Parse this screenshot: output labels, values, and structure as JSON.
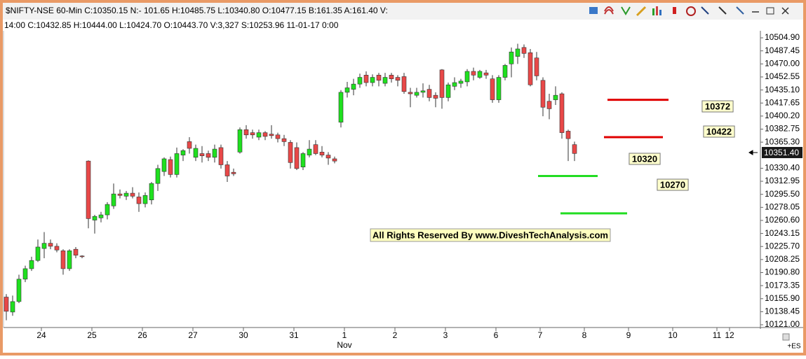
{
  "chart_data": {
    "type": "candlestick",
    "title": "$NIFTY-NSE 60-Min  C:10350.15  N:- 101.65  H:10485.75  L:10340.80  O:10477.15  B:161.35  A:161.40  V:",
    "subtitle": "14:00  C:10432.85  H:10444.00  L:10424.70  O:10443.70  V:3,327  S:10253.96  11-01-17  0:00",
    "categories": [
      null,
      null,
      null,
      null,
      null,
      "24",
      null,
      null,
      null,
      null,
      null,
      null,
      null,
      "25",
      null,
      null,
      null,
      null,
      null,
      null,
      null,
      "26",
      null,
      null,
      null,
      null,
      null,
      null,
      null,
      "27",
      null,
      null,
      null,
      null,
      null,
      null,
      null,
      "30",
      null,
      null,
      null,
      null,
      null,
      null,
      null,
      "31",
      null,
      null,
      null,
      null,
      null,
      null,
      null,
      "1",
      null,
      null,
      null,
      null,
      null,
      null,
      null,
      "2",
      null,
      null,
      null,
      null,
      null,
      null,
      null,
      "3",
      null,
      null,
      null,
      null,
      null,
      null,
      null,
      "6",
      null,
      null,
      null,
      null,
      null,
      null,
      "7",
      null,
      null,
      null,
      null,
      null,
      null,
      "8",
      null,
      null,
      null,
      null,
      null,
      null,
      "9",
      null,
      null,
      null,
      null,
      null,
      null,
      "10",
      null,
      null,
      null,
      null,
      null,
      null,
      "11",
      null,
      "12"
    ],
    "x_sublabels": [
      null,
      null,
      null,
      null,
      null,
      null,
      null,
      null,
      null,
      null,
      null,
      null,
      null,
      null,
      null,
      null,
      null,
      null,
      null,
      null,
      null,
      null,
      null,
      null,
      null,
      null,
      null,
      null,
      null,
      null,
      null,
      null,
      null,
      null,
      null,
      null,
      null,
      null,
      null,
      null,
      null,
      null,
      null,
      null,
      null,
      null,
      null,
      null,
      null,
      null,
      null,
      null,
      null,
      "Nov",
      null,
      null,
      null,
      null,
      null,
      null,
      null,
      null,
      null,
      null,
      null,
      null,
      null,
      null,
      null,
      null,
      null,
      null,
      null,
      null,
      null,
      null,
      null,
      null,
      null,
      null,
      null,
      null,
      null,
      null,
      null,
      null,
      null,
      null,
      null,
      null,
      null,
      null,
      null,
      null,
      null,
      null,
      null,
      null,
      null,
      null,
      null,
      null,
      null,
      null,
      null,
      null,
      null,
      null,
      null,
      null,
      null,
      null,
      null,
      null,
      null
    ],
    "open": [
      10158,
      10138,
      10152,
      10182,
      10196,
      10207,
      10223,
      10230,
      10226,
      10220,
      10196,
      10222,
      10213,
      10340,
      10261,
      10264,
      10268,
      10280,
      10296,
      10293,
      10297,
      10292,
      10283,
      10288,
      10310,
      10326,
      10342,
      10322,
      10348,
      10366,
      10345,
      10350,
      10350,
      10345,
      10358,
      10335,
      10325,
      10352,
      10382,
      10378,
      10372,
      10378,
      10376,
      10375,
      10370,
      10365,
      10358,
      10332,
      10348,
      10362,
      10352,
      10348,
      10343,
      10392,
      10432,
      10436,
      10443,
      10455,
      10445,
      10455,
      10444,
      10455,
      10452,
      10453,
      10432,
      10428,
      10432,
      10436,
      10428,
      10462,
      10425,
      10440,
      10444,
      10446,
      10460,
      10452,
      10458,
      10450,
      10422,
      10452,
      10470,
      10480,
      10492,
      10485,
      10478,
      10448,
      10420,
      10422,
      10430,
      10380,
      10362,
      null,
      null,
      null,
      null,
      null,
      null,
      null,
      null,
      null,
      null,
      null,
      null,
      null,
      null,
      null,
      null,
      null,
      null,
      null,
      null,
      null,
      null,
      null,
      null
    ],
    "high": [
      10162,
      10160,
      10188,
      10200,
      10212,
      10235,
      10245,
      10235,
      10230,
      10222,
      10222,
      10225,
      10214,
      10341,
      10268,
      10272,
      10285,
      10310,
      10302,
      10300,
      10305,
      10298,
      10298,
      10312,
      10335,
      10345,
      10346,
      10358,
      10356,
      10372,
      10362,
      10360,
      10354,
      10362,
      10362,
      10340,
      10330,
      10385,
      10388,
      10382,
      10382,
      10380,
      10388,
      10378,
      10375,
      10368,
      10365,
      10352,
      10368,
      10368,
      10360,
      10352,
      10346,
      10435,
      10446,
      10450,
      10457,
      10460,
      10456,
      10458,
      10458,
      10458,
      10455,
      10458,
      10438,
      10438,
      10444,
      10442,
      10432,
      10463,
      10445,
      10452,
      10450,
      10463,
      10465,
      10462,
      10462,
      10455,
      10455,
      10470,
      10492,
      10497,
      10496,
      10490,
      10486,
      10452,
      10430,
      10440,
      10432,
      10382,
      10366,
      null,
      null,
      null,
      null,
      null,
      null,
      null,
      null,
      null,
      null,
      null,
      null,
      null,
      null,
      null,
      null,
      null,
      null,
      null,
      null,
      null,
      null,
      null,
      null
    ],
    "low": [
      10127,
      10133,
      10150,
      10178,
      10193,
      10205,
      10210,
      10222,
      10218,
      10188,
      10193,
      10210,
      10210,
      10250,
      10243,
      10258,
      10262,
      10276,
      10290,
      10288,
      10290,
      10272,
      10278,
      10282,
      10300,
      10320,
      10318,
      10318,
      10340,
      10350,
      10340,
      10338,
      10340,
      10338,
      10330,
      10312,
      10320,
      10350,
      10370,
      10370,
      10368,
      10368,
      10370,
      10365,
      10360,
      10330,
      10328,
      10328,
      10345,
      10348,
      10345,
      10335,
      10337,
      10385,
      10425,
      10428,
      10438,
      10440,
      10440,
      10440,
      10440,
      10445,
      10440,
      10430,
      10412,
      10425,
      10425,
      10420,
      10412,
      10410,
      10420,
      10435,
      10438,
      10440,
      10448,
      10450,
      10450,
      10418,
      10418,
      10448,
      10452,
      10470,
      10478,
      10440,
      10448,
      10400,
      10396,
      10415,
      10370,
      10340,
      10340,
      null,
      null,
      null,
      null,
      null,
      null,
      null,
      null,
      null,
      null,
      null,
      null,
      null,
      null,
      null,
      null,
      null,
      null,
      null,
      null,
      null,
      null,
      null,
      null
    ],
    "close": [
      10139,
      10152,
      10182,
      10196,
      10207,
      10225,
      10230,
      10226,
      10221,
      10196,
      10220,
      10214,
      10212,
      10263,
      10266,
      10268,
      10282,
      10296,
      10294,
      10297,
      10293,
      10283,
      10294,
      10310,
      10330,
      10343,
      10322,
      10350,
      10354,
      10357,
      10357,
      10347,
      10345,
      10356,
      10335,
      10320,
      10323,
      10382,
      10375,
      10375,
      10378,
      10373,
      10374,
      10370,
      10366,
      10338,
      10330,
      10350,
      10356,
      10350,
      10348,
      10344,
      10340,
      10432,
      10438,
      10443,
      10452,
      10445,
      10452,
      10448,
      10452,
      10450,
      10448,
      10433,
      10430,
      10432,
      10434,
      10425,
      10424,
      10425,
      10442,
      10445,
      10447,
      10460,
      10455,
      10460,
      10455,
      10422,
      10452,
      10468,
      10486,
      10490,
      10484,
      10442,
      10454,
      10412,
      10410,
      10428,
      10378,
      10370,
      10350.15,
      null,
      null,
      null,
      null,
      null,
      null,
      null,
      null,
      null,
      null,
      null,
      null,
      null,
      null,
      null,
      null,
      null,
      null,
      null,
      null,
      null,
      null,
      null,
      null
    ],
    "up_color": "#1fe01f",
    "down_color": "#e84848",
    "ylim": [
      10117.3,
      10514.3
    ],
    "yticks": [
      {
        "value": 10121,
        "label": "10121.00"
      },
      {
        "value": 10138.45,
        "label": "10138.45"
      },
      {
        "value": 10155.9,
        "label": "10155.90"
      },
      {
        "value": 10173.35,
        "label": "10173.35"
      },
      {
        "value": 10190.8,
        "label": "10190.80"
      },
      {
        "value": 10208.25,
        "label": "10208.25"
      },
      {
        "value": 10225.7,
        "label": "10225.70"
      },
      {
        "value": 10243.15,
        "label": "10243.15"
      },
      {
        "value": 10260.6,
        "label": "10260.60"
      },
      {
        "value": 10278.05,
        "label": "10278.05"
      },
      {
        "value": 10295.5,
        "label": "10295.50"
      },
      {
        "value": 10312.95,
        "label": "10312.95"
      },
      {
        "value": 10330.4,
        "label": "10330.40"
      },
      {
        "value": 10365.3,
        "label": "10365.30"
      },
      {
        "value": 10382.75,
        "label": "10382.75"
      },
      {
        "value": 10400.2,
        "label": "10400.20"
      },
      {
        "value": 10417.65,
        "label": "10417.65"
      },
      {
        "value": 10435.1,
        "label": "10435.10"
      },
      {
        "value": 10452.55,
        "label": "10452.55"
      },
      {
        "value": 10470,
        "label": "10470.00"
      },
      {
        "value": 10487.45,
        "label": "10487.45"
      },
      {
        "value": 10504.9,
        "label": "10504.90"
      }
    ],
    "grid": false,
    "levels": [
      {
        "value": 10422,
        "color": "#e00000"
      },
      {
        "value": 10372,
        "color": "#e00000"
      },
      {
        "value": 10320,
        "color": "#22dd22"
      },
      {
        "value": 10270,
        "color": "#22dd22"
      }
    ],
    "annotations": [
      "10372",
      "10422",
      "10320",
      "10270"
    ],
    "watermark": "All Rights Reserved By www.DiveshTechAnalysis.com",
    "last_price": {
      "value": 10351.4,
      "label": "10351.40"
    },
    "corner_label": "+ES"
  }
}
